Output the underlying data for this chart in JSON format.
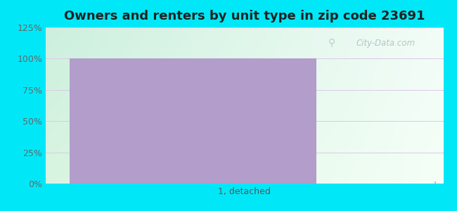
{
  "title": "Owners and renters by unit type in zip code 23691",
  "title_fontsize": 13,
  "categories": [
    "1, detached"
  ],
  "bar_value": 100,
  "bar_color": "#b39dca",
  "ylim": [
    0,
    125
  ],
  "yticks": [
    0,
    25,
    50,
    75,
    100,
    125
  ],
  "ytick_labels": [
    "0%",
    "25%",
    "50%",
    "75%",
    "100%",
    "125%"
  ],
  "tick_label_fontsize": 9,
  "xlabel_fontsize": 9,
  "bg_outer": "#00e8f8",
  "grid_color": "#ddc8e8",
  "watermark": "City-Data.com",
  "bg_top_left": "#b2dfdb",
  "bg_top_right": "#f0faf8",
  "bg_bot_left": "#d4f0d8",
  "bg_bot_right": "#f5fdf5"
}
